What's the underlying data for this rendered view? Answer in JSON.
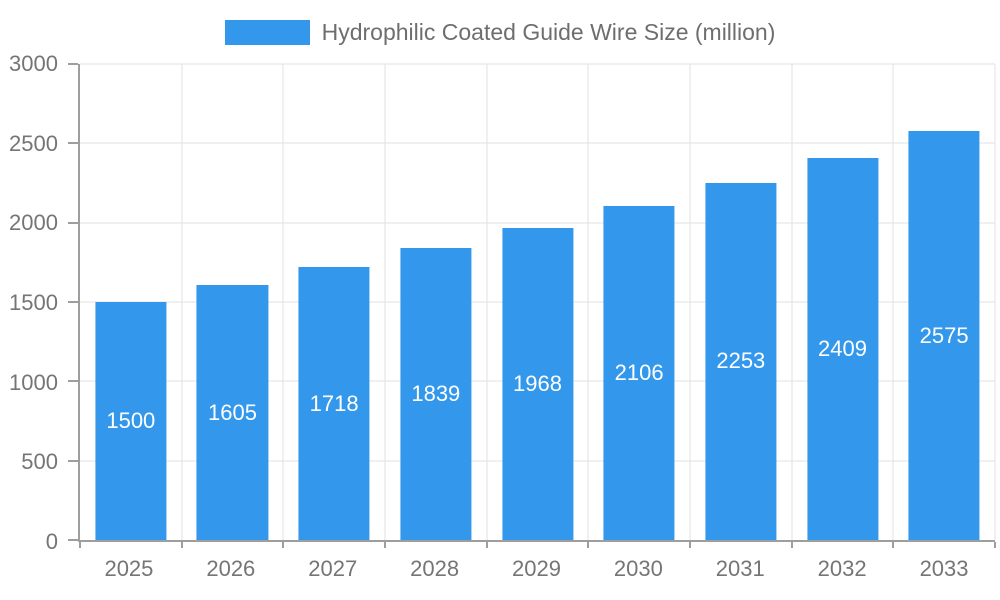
{
  "legend": {
    "title": "Hydrophilic Coated Guide Wire Size (million)"
  },
  "chart_data": {
    "type": "bar",
    "title": "Hydrophilic Coated Guide Wire Size (million)",
    "categories": [
      "2025",
      "2026",
      "2027",
      "2028",
      "2029",
      "2030",
      "2031",
      "2032",
      "2033"
    ],
    "values": [
      1500,
      1605,
      1718,
      1839,
      1968,
      2106,
      2253,
      2409,
      2575
    ],
    "xlabel": "",
    "ylabel": "",
    "ylim": [
      0,
      3000
    ],
    "yticks": [
      0,
      500,
      1000,
      1500,
      2000,
      2500,
      3000
    ],
    "grid": true,
    "legend_position": "top",
    "bar_color": "#3398ec",
    "value_label_color": "#ffffff",
    "axis_text_color": "#757575",
    "axis_line_color": "#9e9e9e",
    "grid_color": "#e2e2e2"
  }
}
